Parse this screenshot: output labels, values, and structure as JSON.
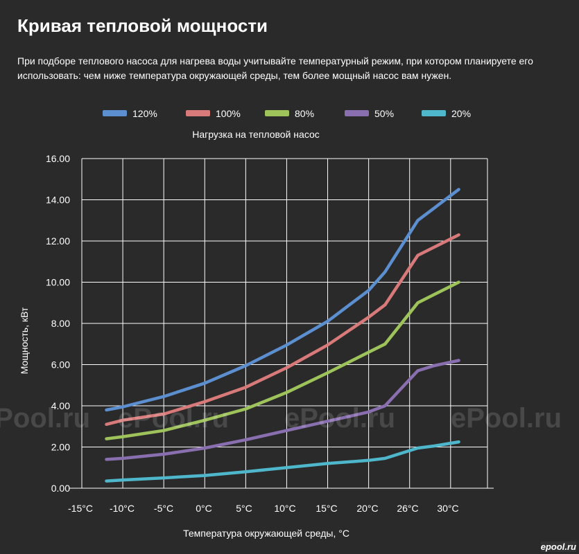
{
  "page": {
    "title": "Кривая тепловой мощности",
    "intro": "При подборе теплового насоса для нагрева воды учитывайте температурный режим, при котором планируете его использовать: чем ниже температура окружающей среды, тем более мощный насос вам нужен."
  },
  "watermark": "ePool.ru",
  "corner_logo": "epool.ru",
  "chart_data": {
    "type": "line",
    "title": "Нагрузка на тепловой насос",
    "xlabel": "Температура окружающей среды, °C",
    "ylabel": "Мощность, кВт",
    "x_tick_labels": [
      "-15°C",
      "-10°C",
      "-5°C",
      "0°C",
      "5°C",
      "10°C",
      "15°C",
      "20°C",
      "26°C",
      "30°C"
    ],
    "y_tick_labels": [
      "0.00",
      "2.00",
      "4.00",
      "6.00",
      "8.00",
      "10.00",
      "12.00",
      "14.00",
      "16.00"
    ],
    "ylim": [
      0,
      16
    ],
    "grid": true,
    "legend_position": "top",
    "x": [
      -12,
      -10,
      -5,
      0,
      5,
      10,
      15,
      20,
      22,
      26,
      28,
      31
    ],
    "series": [
      {
        "name": "120%",
        "color": "#5b8fd0",
        "values": [
          3.8,
          3.95,
          4.45,
          5.1,
          5.95,
          6.95,
          8.1,
          9.6,
          10.5,
          13.0,
          13.6,
          14.5
        ]
      },
      {
        "name": "100%",
        "color": "#d87a7a",
        "values": [
          3.1,
          3.3,
          3.6,
          4.2,
          4.9,
          5.85,
          6.95,
          8.3,
          8.9,
          11.3,
          11.7,
          12.3
        ]
      },
      {
        "name": "80%",
        "color": "#9fc35b",
        "values": [
          2.4,
          2.5,
          2.8,
          3.3,
          3.85,
          4.65,
          5.6,
          6.6,
          7.0,
          9.0,
          9.4,
          10.0
        ]
      },
      {
        "name": "50%",
        "color": "#8a6fb0",
        "values": [
          1.4,
          1.45,
          1.65,
          1.95,
          2.35,
          2.8,
          3.25,
          3.7,
          4.0,
          5.7,
          5.95,
          6.2
        ]
      },
      {
        "name": "20%",
        "color": "#4fb7cc",
        "values": [
          0.35,
          0.4,
          0.5,
          0.62,
          0.8,
          1.0,
          1.2,
          1.35,
          1.45,
          1.95,
          2.05,
          2.25
        ]
      }
    ]
  }
}
